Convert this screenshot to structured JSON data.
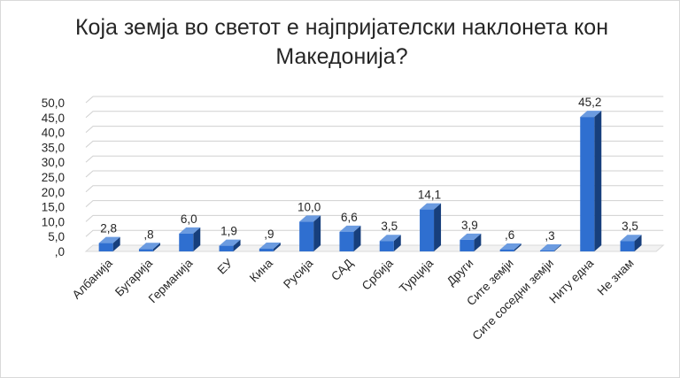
{
  "chart_data": {
    "type": "bar",
    "title": "Која земја во светот е најпријателски наклонета кон Македонија?",
    "categories": [
      "Албанија",
      "Бугарија",
      "Германија",
      "ЕУ",
      "Кина",
      "Русија",
      "САД",
      "Србија",
      "Турција",
      "Други",
      "Сите земји",
      "Сите соседни земји",
      "Ниту една",
      "Не знам"
    ],
    "values": [
      2.8,
      0.8,
      6.0,
      1.9,
      0.9,
      10.0,
      6.6,
      3.5,
      14.1,
      3.9,
      0.6,
      0.3,
      45.2,
      3.5
    ],
    "data_labels": [
      "2,8",
      ",8",
      "6,0",
      "1,9",
      ",9",
      "10,0",
      "6,6",
      "3,5",
      "14,1",
      "3,9",
      ",6",
      ",3",
      "45,2",
      "3,5"
    ],
    "y_ticks": [
      ",0",
      "5,0",
      "10,0",
      "15,0",
      "20,0",
      "25,0",
      "30,0",
      "35,0",
      "40,0",
      "45,0",
      "50,0"
    ],
    "ylim": [
      0,
      50
    ],
    "y_step": 5,
    "xlabel": "",
    "ylabel": "",
    "grid": true,
    "legend": "none",
    "colors": {
      "bar_front": "#2f6fd0",
      "bar_side": "#173f7c",
      "bar_top": "#6b9be0",
      "grid": "#d0d0d0",
      "floor": "#d9d9d9"
    }
  }
}
